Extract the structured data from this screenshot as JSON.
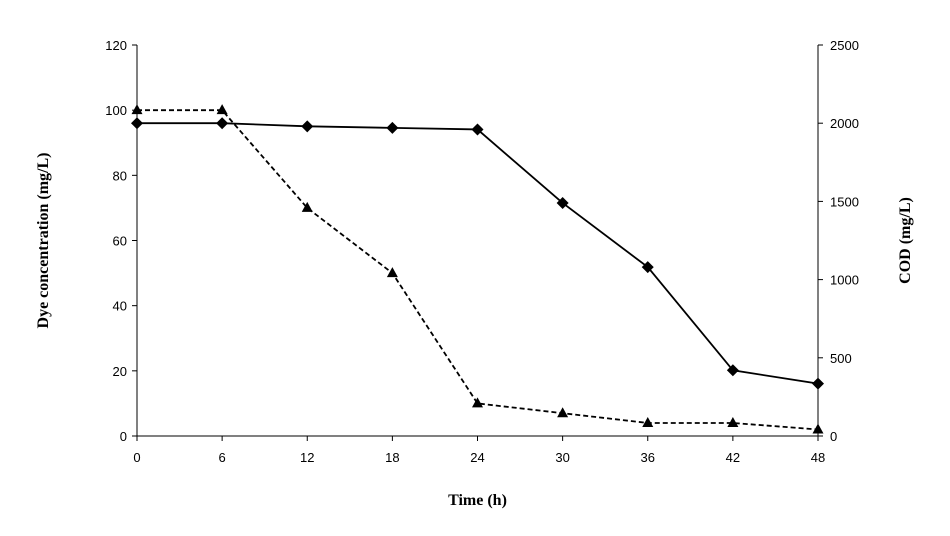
{
  "chart_data": {
    "type": "line",
    "title": "",
    "xlabel": "Time (h)",
    "ylabel_left": "Dye concentration (mg/L)",
    "ylabel_right": "COD (mg/L)",
    "x": [
      0,
      6,
      12,
      18,
      24,
      30,
      36,
      42,
      48
    ],
    "x_ticks": [
      "0",
      "6",
      "12",
      "18",
      "24",
      "30",
      "36",
      "42",
      "48"
    ],
    "xlim": [
      0,
      48
    ],
    "ylim_left": [
      0,
      120
    ],
    "ylim_right": [
      0,
      2500
    ],
    "y_ticks_left": [
      "0",
      "20",
      "40",
      "60",
      "80",
      "100",
      "120"
    ],
    "y_ticks_right": [
      "0",
      "500",
      "1000",
      "1500",
      "2000",
      "2500"
    ],
    "grid": false,
    "legend": "none",
    "series": [
      {
        "axis": "left",
        "marker": "triangle",
        "style": "dashed",
        "values": [
          100,
          100,
          70,
          50,
          10,
          7,
          4,
          4,
          2
        ]
      },
      {
        "axis": "right",
        "marker": "diamond",
        "style": "solid",
        "values": [
          2000,
          2000,
          1980,
          1970,
          1960,
          1490,
          1080,
          420,
          335
        ]
      }
    ],
    "colors": {
      "line": "#000000",
      "axis": "#000000"
    }
  }
}
